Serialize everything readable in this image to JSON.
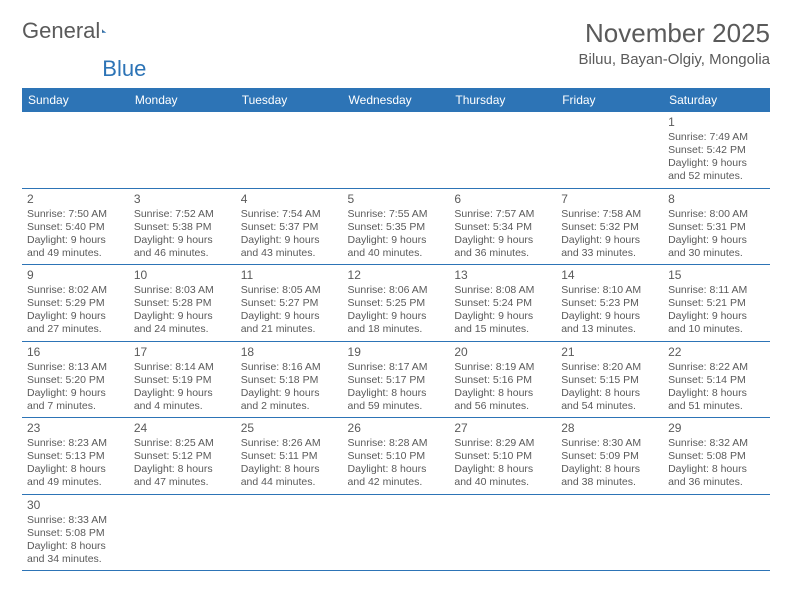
{
  "logo": {
    "word1": "General",
    "word2": "Blue"
  },
  "title": "November 2025",
  "location": "Biluu, Bayan-Olgiy, Mongolia",
  "colors": {
    "header_bg": "#2d74b6",
    "header_fg": "#ffffff",
    "text": "#5a5a5a",
    "row_border": "#2d74b6",
    "cell_border": "#b0b0b0"
  },
  "daynames": [
    "Sunday",
    "Monday",
    "Tuesday",
    "Wednesday",
    "Thursday",
    "Friday",
    "Saturday"
  ],
  "weeks": [
    [
      null,
      null,
      null,
      null,
      null,
      null,
      {
        "n": "1",
        "sr": "Sunrise: 7:49 AM",
        "ss": "Sunset: 5:42 PM",
        "d1": "Daylight: 9 hours",
        "d2": "and 52 minutes."
      }
    ],
    [
      {
        "n": "2",
        "sr": "Sunrise: 7:50 AM",
        "ss": "Sunset: 5:40 PM",
        "d1": "Daylight: 9 hours",
        "d2": "and 49 minutes."
      },
      {
        "n": "3",
        "sr": "Sunrise: 7:52 AM",
        "ss": "Sunset: 5:38 PM",
        "d1": "Daylight: 9 hours",
        "d2": "and 46 minutes."
      },
      {
        "n": "4",
        "sr": "Sunrise: 7:54 AM",
        "ss": "Sunset: 5:37 PM",
        "d1": "Daylight: 9 hours",
        "d2": "and 43 minutes."
      },
      {
        "n": "5",
        "sr": "Sunrise: 7:55 AM",
        "ss": "Sunset: 5:35 PM",
        "d1": "Daylight: 9 hours",
        "d2": "and 40 minutes."
      },
      {
        "n": "6",
        "sr": "Sunrise: 7:57 AM",
        "ss": "Sunset: 5:34 PM",
        "d1": "Daylight: 9 hours",
        "d2": "and 36 minutes."
      },
      {
        "n": "7",
        "sr": "Sunrise: 7:58 AM",
        "ss": "Sunset: 5:32 PM",
        "d1": "Daylight: 9 hours",
        "d2": "and 33 minutes."
      },
      {
        "n": "8",
        "sr": "Sunrise: 8:00 AM",
        "ss": "Sunset: 5:31 PM",
        "d1": "Daylight: 9 hours",
        "d2": "and 30 minutes."
      }
    ],
    [
      {
        "n": "9",
        "sr": "Sunrise: 8:02 AM",
        "ss": "Sunset: 5:29 PM",
        "d1": "Daylight: 9 hours",
        "d2": "and 27 minutes."
      },
      {
        "n": "10",
        "sr": "Sunrise: 8:03 AM",
        "ss": "Sunset: 5:28 PM",
        "d1": "Daylight: 9 hours",
        "d2": "and 24 minutes."
      },
      {
        "n": "11",
        "sr": "Sunrise: 8:05 AM",
        "ss": "Sunset: 5:27 PM",
        "d1": "Daylight: 9 hours",
        "d2": "and 21 minutes."
      },
      {
        "n": "12",
        "sr": "Sunrise: 8:06 AM",
        "ss": "Sunset: 5:25 PM",
        "d1": "Daylight: 9 hours",
        "d2": "and 18 minutes."
      },
      {
        "n": "13",
        "sr": "Sunrise: 8:08 AM",
        "ss": "Sunset: 5:24 PM",
        "d1": "Daylight: 9 hours",
        "d2": "and 15 minutes."
      },
      {
        "n": "14",
        "sr": "Sunrise: 8:10 AM",
        "ss": "Sunset: 5:23 PM",
        "d1": "Daylight: 9 hours",
        "d2": "and 13 minutes."
      },
      {
        "n": "15",
        "sr": "Sunrise: 8:11 AM",
        "ss": "Sunset: 5:21 PM",
        "d1": "Daylight: 9 hours",
        "d2": "and 10 minutes."
      }
    ],
    [
      {
        "n": "16",
        "sr": "Sunrise: 8:13 AM",
        "ss": "Sunset: 5:20 PM",
        "d1": "Daylight: 9 hours",
        "d2": "and 7 minutes."
      },
      {
        "n": "17",
        "sr": "Sunrise: 8:14 AM",
        "ss": "Sunset: 5:19 PM",
        "d1": "Daylight: 9 hours",
        "d2": "and 4 minutes."
      },
      {
        "n": "18",
        "sr": "Sunrise: 8:16 AM",
        "ss": "Sunset: 5:18 PM",
        "d1": "Daylight: 9 hours",
        "d2": "and 2 minutes."
      },
      {
        "n": "19",
        "sr": "Sunrise: 8:17 AM",
        "ss": "Sunset: 5:17 PM",
        "d1": "Daylight: 8 hours",
        "d2": "and 59 minutes."
      },
      {
        "n": "20",
        "sr": "Sunrise: 8:19 AM",
        "ss": "Sunset: 5:16 PM",
        "d1": "Daylight: 8 hours",
        "d2": "and 56 minutes."
      },
      {
        "n": "21",
        "sr": "Sunrise: 8:20 AM",
        "ss": "Sunset: 5:15 PM",
        "d1": "Daylight: 8 hours",
        "d2": "and 54 minutes."
      },
      {
        "n": "22",
        "sr": "Sunrise: 8:22 AM",
        "ss": "Sunset: 5:14 PM",
        "d1": "Daylight: 8 hours",
        "d2": "and 51 minutes."
      }
    ],
    [
      {
        "n": "23",
        "sr": "Sunrise: 8:23 AM",
        "ss": "Sunset: 5:13 PM",
        "d1": "Daylight: 8 hours",
        "d2": "and 49 minutes."
      },
      {
        "n": "24",
        "sr": "Sunrise: 8:25 AM",
        "ss": "Sunset: 5:12 PM",
        "d1": "Daylight: 8 hours",
        "d2": "and 47 minutes."
      },
      {
        "n": "25",
        "sr": "Sunrise: 8:26 AM",
        "ss": "Sunset: 5:11 PM",
        "d1": "Daylight: 8 hours",
        "d2": "and 44 minutes."
      },
      {
        "n": "26",
        "sr": "Sunrise: 8:28 AM",
        "ss": "Sunset: 5:10 PM",
        "d1": "Daylight: 8 hours",
        "d2": "and 42 minutes."
      },
      {
        "n": "27",
        "sr": "Sunrise: 8:29 AM",
        "ss": "Sunset: 5:10 PM",
        "d1": "Daylight: 8 hours",
        "d2": "and 40 minutes."
      },
      {
        "n": "28",
        "sr": "Sunrise: 8:30 AM",
        "ss": "Sunset: 5:09 PM",
        "d1": "Daylight: 8 hours",
        "d2": "and 38 minutes."
      },
      {
        "n": "29",
        "sr": "Sunrise: 8:32 AM",
        "ss": "Sunset: 5:08 PM",
        "d1": "Daylight: 8 hours",
        "d2": "and 36 minutes."
      }
    ],
    [
      {
        "n": "30",
        "sr": "Sunrise: 8:33 AM",
        "ss": "Sunset: 5:08 PM",
        "d1": "Daylight: 8 hours",
        "d2": "and 34 minutes."
      },
      null,
      null,
      null,
      null,
      null,
      null
    ]
  ]
}
